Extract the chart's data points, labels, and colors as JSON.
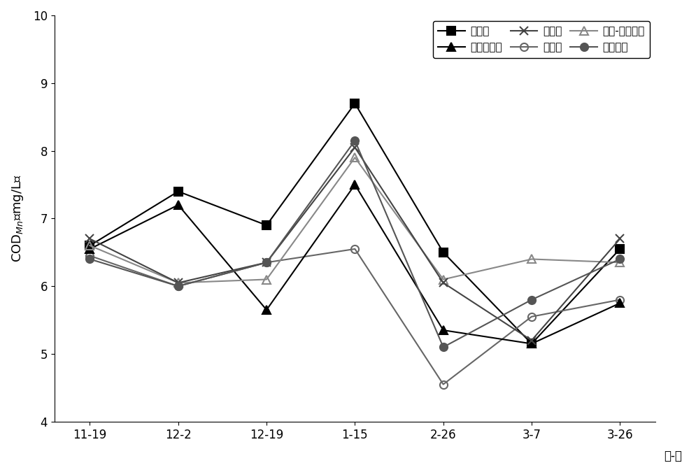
{
  "x_labels": [
    "11-19",
    "12-2",
    "12-19",
    "1-15",
    "2-26",
    "3-7",
    "3-26"
  ],
  "xlabel": "月-日",
  "ylim": [
    4,
    10
  ],
  "yticks": [
    4,
    5,
    6,
    7,
    8,
    9,
    10
  ],
  "series": [
    {
      "label": "敏水区",
      "values": [
        6.6,
        7.4,
        6.9,
        8.7,
        6.5,
        5.15,
        6.55
      ],
      "color": "#000000",
      "marker": "s",
      "marker_size": 8,
      "linestyle": "-",
      "linewidth": 1.5,
      "fillstyle": "full"
    },
    {
      "label": "对照区",
      "values": [
        6.45,
        6.0,
        6.35,
        6.55,
        4.55,
        5.55,
        5.8
      ],
      "color": "#666666",
      "marker": "o",
      "marker_size": 8,
      "linestyle": "-",
      "linewidth": 1.5,
      "fillstyle": "none"
    },
    {
      "label": "多种植物区",
      "values": [
        6.55,
        7.2,
        5.65,
        7.5,
        5.35,
        5.15,
        5.75
      ],
      "color": "#000000",
      "marker": "^",
      "marker_size": 8,
      "linestyle": "-",
      "linewidth": 1.5,
      "fillstyle": "full"
    },
    {
      "label": "茸草-伊乐藻区",
      "values": [
        6.6,
        6.05,
        6.1,
        7.9,
        6.1,
        6.4,
        6.35
      ],
      "color": "#888888",
      "marker": "^",
      "marker_size": 8,
      "linestyle": "-",
      "linewidth": 1.5,
      "fillstyle": "none"
    },
    {
      "label": "茸草区",
      "values": [
        6.7,
        6.05,
        6.35,
        8.05,
        6.05,
        5.2,
        6.7
      ],
      "color": "#444444",
      "marker": "x",
      "marker_size": 9,
      "linestyle": "-",
      "linewidth": 1.5,
      "fillstyle": "full"
    },
    {
      "label": "伊乐藻区",
      "values": [
        6.4,
        6.0,
        6.35,
        8.15,
        5.1,
        5.8,
        6.4
      ],
      "color": "#555555",
      "marker": "o",
      "marker_size": 8,
      "linestyle": "-",
      "linewidth": 1.5,
      "fillstyle": "full"
    }
  ],
  "legend_order": [
    0,
    2,
    4,
    1,
    3,
    5
  ],
  "background_color": "#ffffff"
}
